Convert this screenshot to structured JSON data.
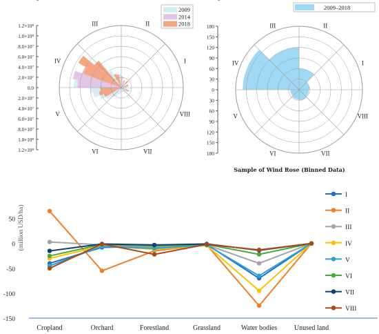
{
  "chart_data": [
    {
      "type": "rose",
      "directions": [
        "I",
        "II",
        "III",
        "IV",
        "V",
        "VI",
        "VII",
        "VIII"
      ],
      "r_ticks": [
        "1.2×10⁸",
        "1.0×10⁸",
        "8.0×10⁷",
        "6.0×10⁷",
        "4.0×10⁷",
        "2.0×10⁷",
        "0.0"
      ],
      "r_max": 120000000,
      "series": [
        {
          "name": "2009",
          "color": "#d6ecf5",
          "wedges": [
            {
              "start": 0,
              "end": 10,
              "r": 10000000
            },
            {
              "start": 10,
              "end": 20,
              "r": 15000000
            },
            {
              "start": 20,
              "end": 30,
              "r": 12000000
            },
            {
              "start": 30,
              "end": 40,
              "r": 8000000
            },
            {
              "start": 40,
              "end": 50,
              "r": 6000000
            },
            {
              "start": 50,
              "end": 60,
              "r": 7000000
            },
            {
              "start": 60,
              "end": 70,
              "r": 9000000
            },
            {
              "start": 70,
              "end": 80,
              "r": 14000000
            },
            {
              "start": 80,
              "end": 90,
              "r": 20000000
            },
            {
              "start": 90,
              "end": 100,
              "r": 26000000
            },
            {
              "start": 100,
              "end": 110,
              "r": 25000000
            },
            {
              "start": 110,
              "end": 120,
              "r": 30000000
            },
            {
              "start": 120,
              "end": 130,
              "r": 38000000
            },
            {
              "start": 130,
              "end": 140,
              "r": 50000000
            },
            {
              "start": 140,
              "end": 150,
              "r": 62000000
            },
            {
              "start": 150,
              "end": 160,
              "r": 70000000
            },
            {
              "start": 160,
              "end": 170,
              "r": 83000000
            },
            {
              "start": 170,
              "end": 180,
              "r": 92000000
            },
            {
              "start": 180,
              "end": 190,
              "r": 60000000
            },
            {
              "start": 190,
              "end": 200,
              "r": 55000000
            },
            {
              "start": 200,
              "end": 210,
              "r": 45000000
            },
            {
              "start": 210,
              "end": 220,
              "r": 35000000
            },
            {
              "start": 220,
              "end": 230,
              "r": 25000000
            },
            {
              "start": 230,
              "end": 240,
              "r": 20000000
            },
            {
              "start": 240,
              "end": 250,
              "r": 15000000
            },
            {
              "start": 250,
              "end": 260,
              "r": 12000000
            },
            {
              "start": 260,
              "end": 270,
              "r": 10000000
            },
            {
              "start": 270,
              "end": 280,
              "r": 9000000
            },
            {
              "start": 280,
              "end": 290,
              "r": 8000000
            },
            {
              "start": 290,
              "end": 300,
              "r": 9000000
            },
            {
              "start": 300,
              "end": 310,
              "r": 10000000
            },
            {
              "start": 310,
              "end": 320,
              "r": 12000000
            },
            {
              "start": 320,
              "end": 330,
              "r": 14000000
            },
            {
              "start": 330,
              "end": 340,
              "r": 13000000
            },
            {
              "start": 340,
              "end": 350,
              "r": 12000000
            },
            {
              "start": 350,
              "end": 360,
              "r": 11000000
            }
          ]
        },
        {
          "name": "2014",
          "color": "#e2c6e8",
          "wedges": [
            {
              "start": 160,
              "end": 170,
              "r": 95000000
            },
            {
              "start": 170,
              "end": 180,
              "r": 85000000
            },
            {
              "start": 150,
              "end": 160,
              "r": 80000000
            },
            {
              "start": 140,
              "end": 150,
              "r": 60000000
            },
            {
              "start": 80,
              "end": 90,
              "r": 22000000
            },
            {
              "start": 20,
              "end": 30,
              "r": 14000000
            }
          ]
        },
        {
          "name": "2018",
          "color": "#f4a582",
          "wedges": [
            {
              "start": 130,
              "end": 140,
              "r": 68000000
            },
            {
              "start": 140,
              "end": 150,
              "r": 96000000
            },
            {
              "start": 150,
              "end": 160,
              "r": 78000000
            },
            {
              "start": 100,
              "end": 110,
              "r": 26000000
            },
            {
              "start": 110,
              "end": 120,
              "r": 28000000
            },
            {
              "start": 60,
              "end": 70,
              "r": 15000000
            },
            {
              "start": 40,
              "end": 50,
              "r": 17000000
            },
            {
              "start": 10,
              "end": 20,
              "r": 14000000
            },
            {
              "start": 180,
              "end": 190,
              "r": 40000000
            },
            {
              "start": 190,
              "end": 200,
              "r": 44000000
            },
            {
              "start": 200,
              "end": 210,
              "r": 36000000
            },
            {
              "start": 330,
              "end": 340,
              "r": 16000000
            }
          ]
        }
      ]
    },
    {
      "type": "rose",
      "title": "Sample of Wind Rose (Binned Data)",
      "directions": [
        "I",
        "II",
        "III",
        "IV",
        "V",
        "VI",
        "VII",
        "VIII"
      ],
      "r_ticks": [
        "180",
        "150",
        "120",
        "90",
        "60",
        "30",
        "0",
        "30",
        "60",
        "90",
        "120",
        "150",
        "180"
      ],
      "r_max": 180,
      "series": [
        {
          "name": "2009–2018",
          "color": "#9fd9f5",
          "wedges": [
            {
              "start": 45,
              "end": 90,
              "r": 60
            },
            {
              "start": 90,
              "end": 135,
              "r": 120
            },
            {
              "start": 135,
              "end": 180,
              "r": 160
            },
            {
              "start": 180,
              "end": 225,
              "r": 25
            },
            {
              "start": 225,
              "end": 270,
              "r": 28
            },
            {
              "start": 270,
              "end": 315,
              "r": 30
            },
            {
              "start": 315,
              "end": 360,
              "r": 28
            },
            {
              "start": 0,
              "end": 45,
              "r": 30
            }
          ]
        }
      ]
    },
    {
      "type": "line",
      "ylabel": "(million USD/ha)",
      "categories": [
        "Cropland",
        "Orchard",
        "Forestland",
        "Grassland",
        "Water bodies",
        "Unused land"
      ],
      "ylim": [
        -150,
        80
      ],
      "y_ticks": [
        50,
        0,
        -50,
        -100,
        -150
      ],
      "series": [
        {
          "name": "I",
          "color": "#1f6fc2",
          "values": [
            -40,
            -8,
            -6,
            -2,
            -70,
            0
          ]
        },
        {
          "name": "II",
          "color": "#f07e26",
          "values": [
            65,
            -55,
            -15,
            -3,
            -125,
            0
          ]
        },
        {
          "name": "III",
          "color": "#a5a5a5",
          "values": [
            3,
            -3,
            -8,
            -3,
            -40,
            0
          ]
        },
        {
          "name": "IV",
          "color": "#ffc000",
          "values": [
            -30,
            -5,
            -12,
            -4,
            -95,
            0
          ]
        },
        {
          "name": "V",
          "color": "#2e9fd9",
          "values": [
            -45,
            -6,
            -10,
            -3,
            -65,
            0
          ]
        },
        {
          "name": "VI",
          "color": "#4aa83c",
          "values": [
            -25,
            -2,
            -5,
            -2,
            -22,
            0
          ]
        },
        {
          "name": "VII",
          "color": "#123e73",
          "values": [
            -15,
            -1,
            -3,
            -1,
            -14,
            0
          ]
        },
        {
          "name": "VIII",
          "color": "#a9481a",
          "values": [
            -50,
            -1,
            -22,
            -2,
            -13,
            0
          ]
        }
      ]
    }
  ]
}
